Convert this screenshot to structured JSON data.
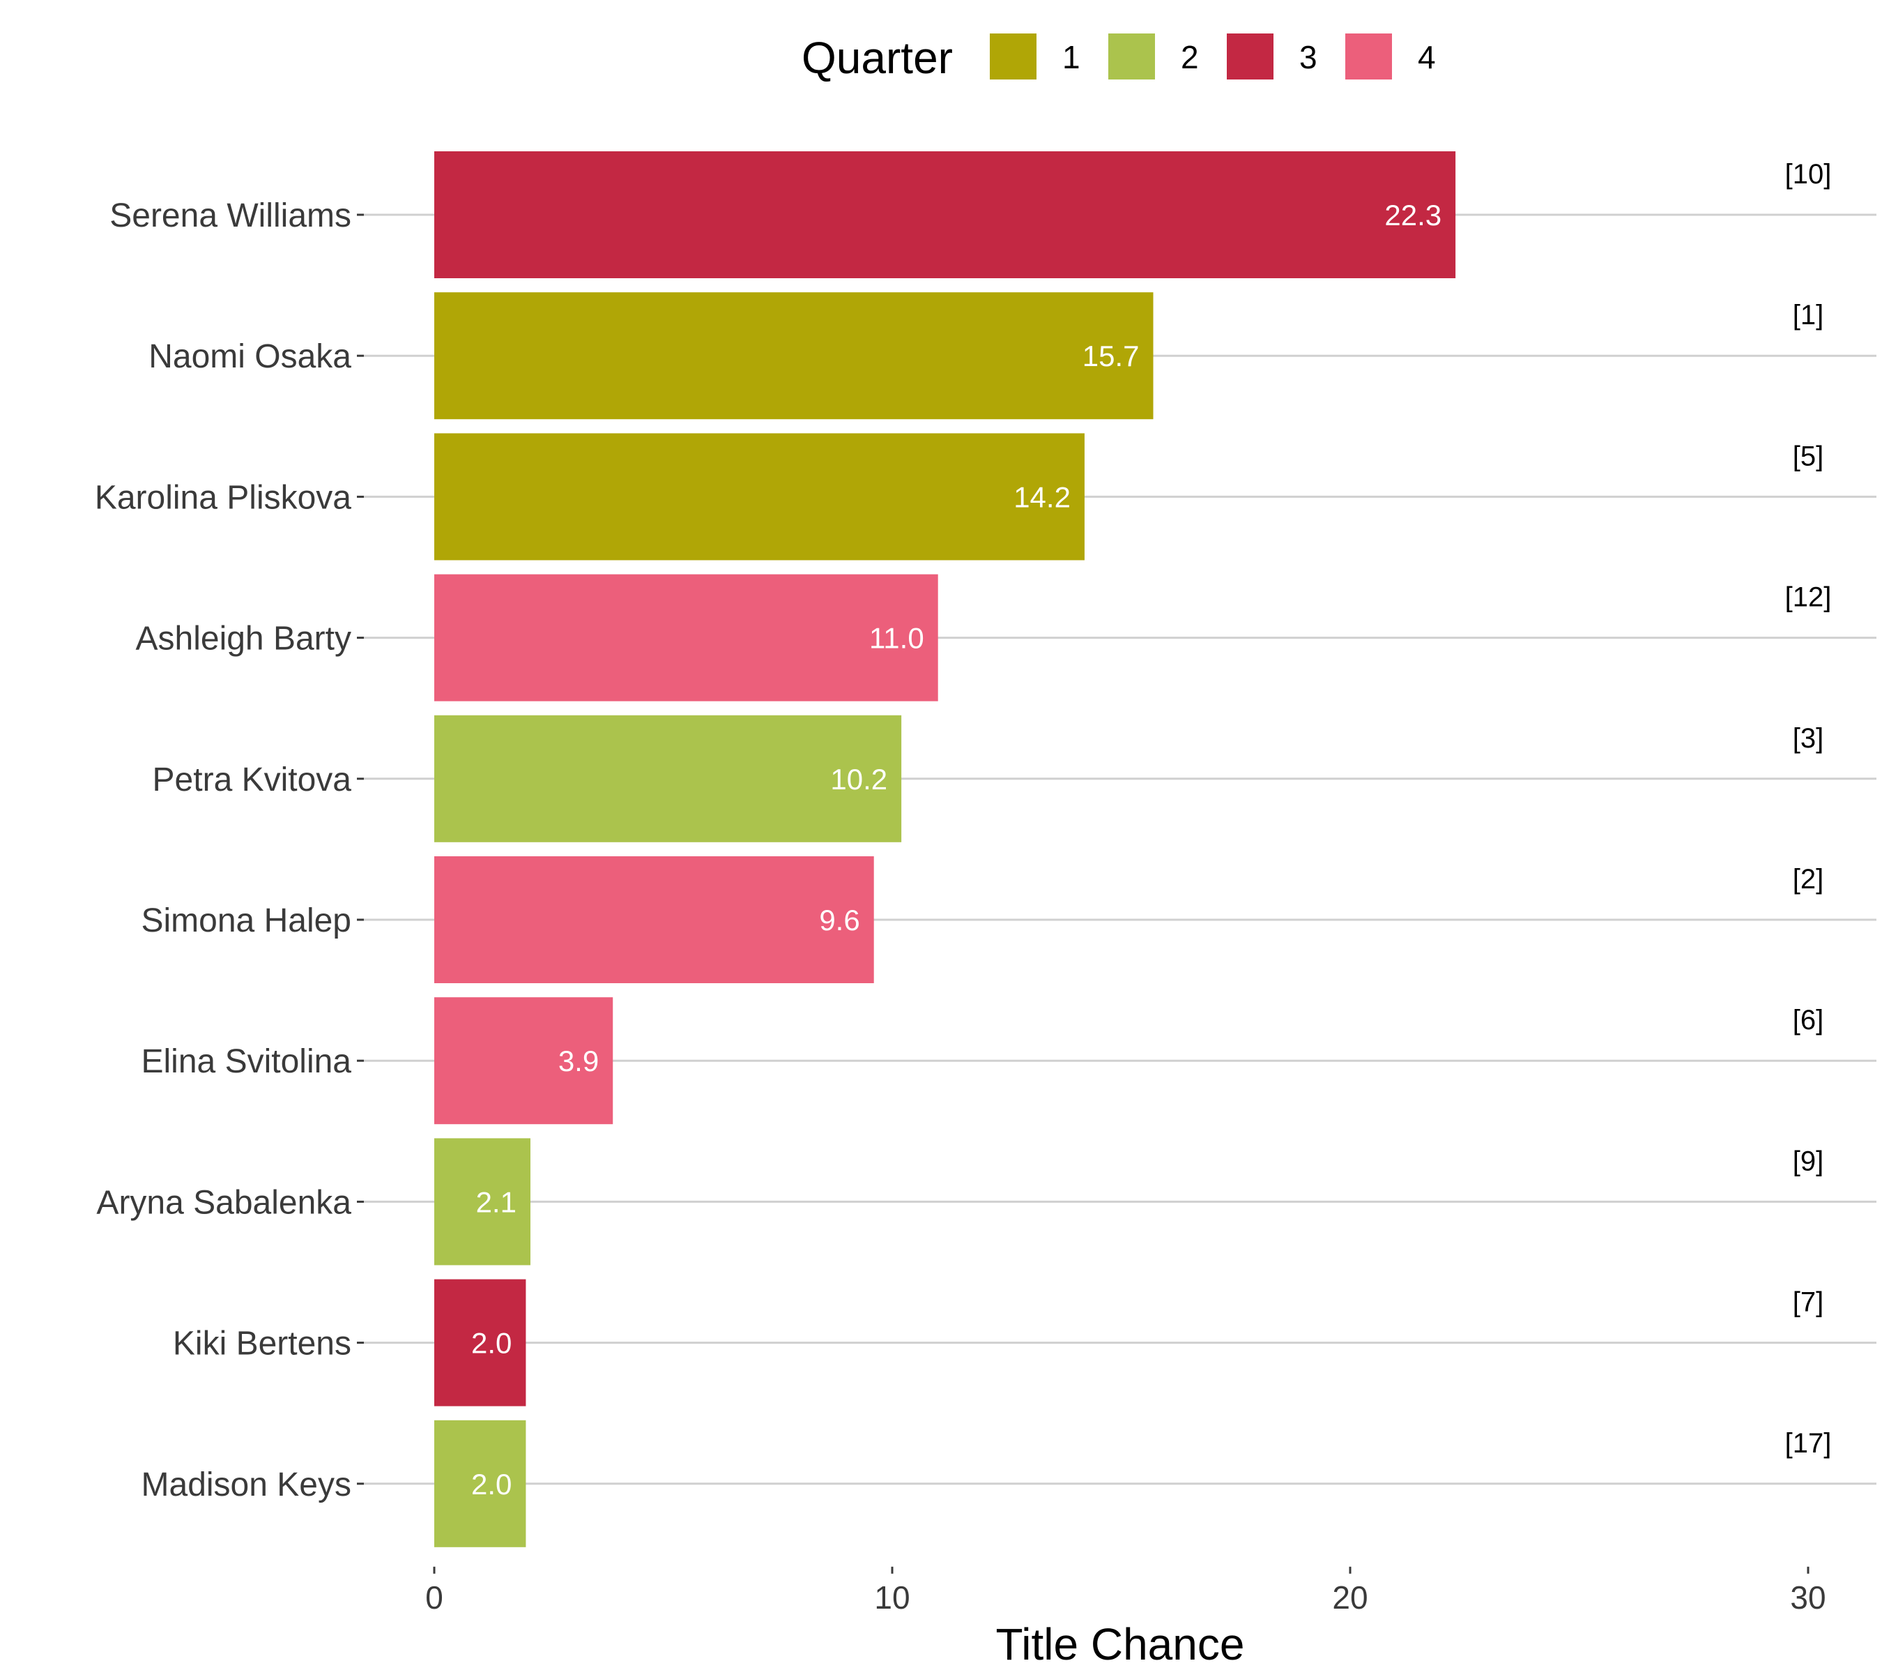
{
  "chart_data": {
    "type": "bar",
    "orientation": "horizontal",
    "xlabel": "Title Chance",
    "ylabel": "",
    "xlim": [
      0,
      30
    ],
    "xticks": [
      0,
      10,
      20,
      30
    ],
    "grid": "horizontal major lines at each category",
    "legend": {
      "title": "Quarter",
      "placement": "top",
      "entries": [
        {
          "label": "1",
          "color": "#b0a606"
        },
        {
          "label": "2",
          "color": "#abc34d"
        },
        {
          "label": "3",
          "color": "#c32843"
        },
        {
          "label": "4",
          "color": "#ec5f7b"
        }
      ]
    },
    "categories": [
      "Serena Williams",
      "Naomi Osaka",
      "Karolina Pliskova",
      "Ashleigh Barty",
      "Petra Kvitova",
      "Simona Halep",
      "Elina Svitolina",
      "Aryna Sabalenka",
      "Kiki Bertens",
      "Madison Keys"
    ],
    "values": [
      22.3,
      15.7,
      14.2,
      11.0,
      10.2,
      9.6,
      3.9,
      2.1,
      2.0,
      2.0
    ],
    "value_labels": [
      "22.3",
      "15.7",
      "14.2",
      "11.0",
      "10.2",
      "9.6",
      "3.9",
      "2.1",
      "2.0",
      "2.0"
    ],
    "quarters": [
      "3",
      "1",
      "1",
      "4",
      "2",
      "4",
      "4",
      "2",
      "3",
      "2"
    ],
    "seeds": [
      "[10]",
      "[1]",
      "[5]",
      "[12]",
      "[3]",
      "[2]",
      "[6]",
      "[9]",
      "[7]",
      "[17]"
    ]
  }
}
